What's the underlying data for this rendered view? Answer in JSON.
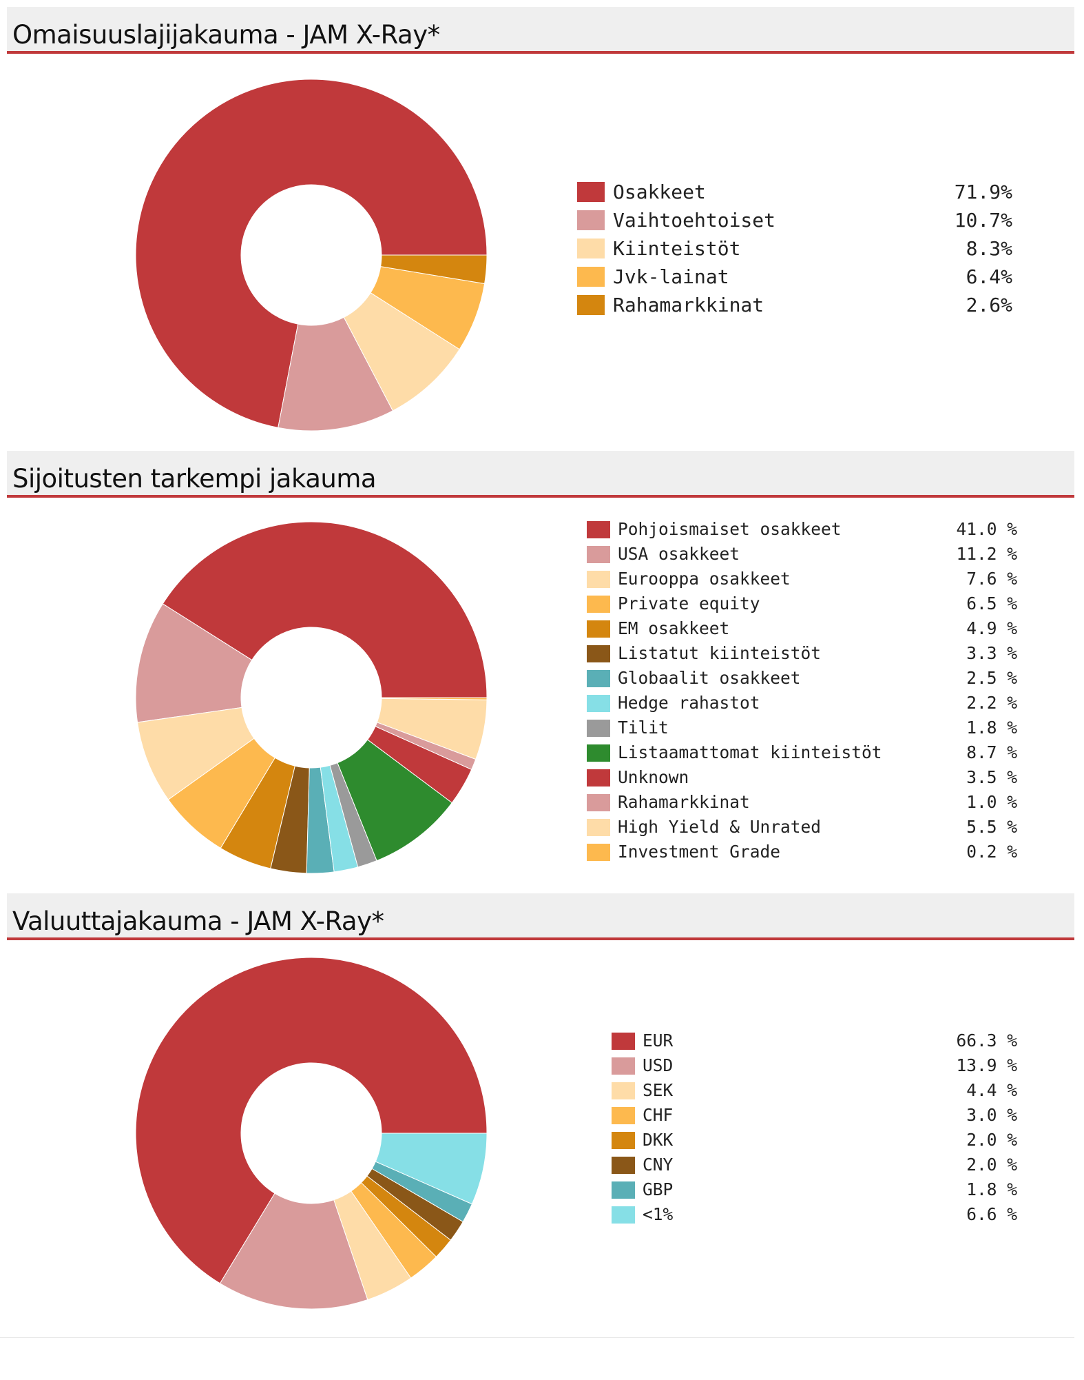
{
  "chart_data": [
    {
      "type": "pie",
      "title": "Omaisuuslajijakauma - JAM X-Ray*",
      "categories": [
        "Osakkeet",
        "Vaihtoehtoiset",
        "Kiinteistöt",
        "Jvk-lainat",
        "Rahamarkkinat"
      ],
      "values": [
        71.9,
        10.7,
        8.3,
        6.4,
        2.6
      ],
      "value_labels": [
        "71.9%",
        "10.7%",
        "8.3%",
        "6.4%",
        "2.6%"
      ],
      "colors": [
        "#c0393b",
        "#d99b9b",
        "#fedca8",
        "#fdb94e",
        "#d4860f"
      ],
      "legend_position": "right"
    },
    {
      "type": "pie",
      "title": "Sijoitusten tarkempi jakauma",
      "categories": [
        "Pohjoismaiset osakkeet",
        "USA osakkeet",
        "Eurooppa osakkeet",
        "Private equity",
        "EM osakkeet",
        "Listatut kiinteistöt",
        "Globaalit osakkeet",
        "Hedge rahastot",
        "Tilit",
        "Listaamattomat kiinteistöt",
        "Unknown",
        "Rahamarkkinat",
        "High Yield & Unrated",
        "Investment Grade"
      ],
      "values": [
        41.0,
        11.2,
        7.6,
        6.5,
        4.9,
        3.3,
        2.5,
        2.2,
        1.8,
        8.7,
        3.5,
        1.0,
        5.5,
        0.2
      ],
      "value_labels": [
        "41.0 %",
        "11.2 %",
        "7.6 %",
        "6.5 %",
        "4.9 %",
        "3.3 %",
        "2.5 %",
        "2.2 %",
        "1.8 %",
        "8.7 %",
        "3.5 %",
        "1.0 %",
        "5.5 %",
        "0.2 %"
      ],
      "colors": [
        "#c0393b",
        "#d99b9b",
        "#fedca8",
        "#fdb94e",
        "#d4860f",
        "#8a5718",
        "#5aafb6",
        "#86dfe6",
        "#9a9a9a",
        "#2e8b2e",
        "#c0393b",
        "#d99b9b",
        "#fedca8",
        "#fdb94e"
      ],
      "legend_position": "right"
    },
    {
      "type": "pie",
      "title": "Valuuttajakauma - JAM X-Ray*",
      "categories": [
        "EUR",
        "USD",
        "SEK",
        "CHF",
        "DKK",
        "CNY",
        "GBP",
        "<1%"
      ],
      "values": [
        66.3,
        13.9,
        4.4,
        3.0,
        2.0,
        2.0,
        1.8,
        6.6
      ],
      "value_labels": [
        "66.3 %",
        "13.9 %",
        "4.4 %",
        "3.0 %",
        "2.0 %",
        "2.0 %",
        "1.8 %",
        "6.6 %"
      ],
      "colors": [
        "#c0393b",
        "#d99b9b",
        "#fedca8",
        "#fdb94e",
        "#d4860f",
        "#8a5718",
        "#5aafb6",
        "#86dfe6"
      ],
      "legend_position": "right"
    }
  ]
}
